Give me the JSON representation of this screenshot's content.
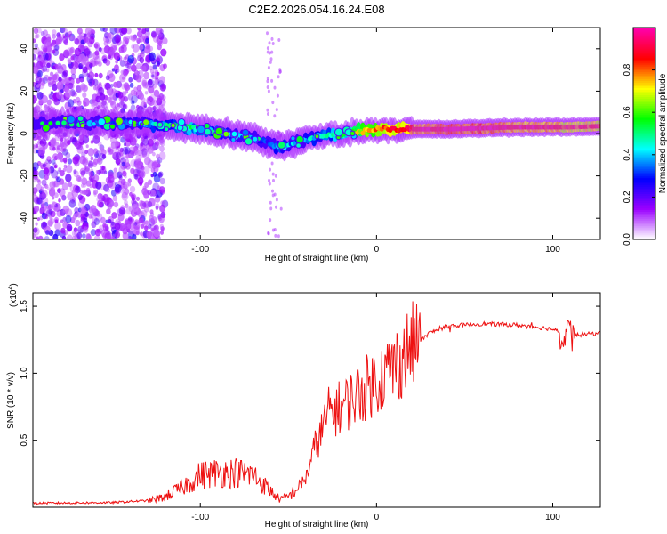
{
  "title": "C2E2.2026.054.16.24.E08",
  "chart_data": [
    {
      "type": "heatmap",
      "title": "C2E2.2026.054.16.24.E08",
      "xlabel": "Height of straight line (km)",
      "ylabel": "Frequency (Hz)",
      "xlim": [
        -195,
        127
      ],
      "ylim": [
        -50,
        50
      ],
      "xticks": [
        -100,
        0,
        100
      ],
      "xtick_labels": [
        "-100",
        "0",
        "100"
      ],
      "yticks": [
        40,
        20,
        0,
        -20,
        -40
      ],
      "ytick_labels": [
        "40",
        "20",
        "0",
        "-20",
        "-40"
      ],
      "colorbar": {
        "label": "Normalized spectral amplitude",
        "range": [
          0,
          1
        ],
        "ticks": [
          0.0,
          0.2,
          0.4,
          0.6,
          0.8
        ],
        "tick_labels": [
          "0.0",
          "0.2",
          "0.4",
          "0.6",
          "0.8"
        ],
        "colors": [
          "#ffffff",
          "#9a00ff",
          "#0000ff",
          "#00ffff",
          "#00ff00",
          "#ffff00",
          "#ff0000",
          "#ff00aa"
        ]
      },
      "ridge": {
        "x": [
          -190,
          -170,
          -150,
          -130,
          -120,
          -110,
          -100,
          -90,
          -80,
          -70,
          -60,
          -55,
          -50,
          -45,
          -40,
          -30,
          -20,
          -10,
          0,
          10,
          20,
          40,
          60,
          80,
          100,
          110,
          127
        ],
        "y": [
          5,
          5,
          5,
          4.5,
          4,
          3,
          2,
          1,
          -1,
          -2,
          -5,
          -6,
          -5,
          -4,
          -3,
          -1,
          0,
          1,
          2,
          2,
          2,
          2,
          2.5,
          3,
          3,
          3,
          3.5
        ],
        "amplitude": [
          0.3,
          0.3,
          0.35,
          0.4,
          0.45,
          0.5,
          0.5,
          0.45,
          0.4,
          0.35,
          0.3,
          0.45,
          0.4,
          0.35,
          0.4,
          0.45,
          0.55,
          0.7,
          0.8,
          0.85,
          0.9,
          0.95,
          0.95,
          0.9,
          0.9,
          0.85,
          0.85
        ]
      },
      "noise_region_x": [
        -195,
        -120
      ]
    },
    {
      "type": "line",
      "xlabel": "Height of straight line (km)",
      "ylabel": "SNR (10 * v/v)",
      "yscale_label": "(x10",
      "yscale_exp": "4",
      "yscale_close": ")",
      "xlim": [
        -195,
        127
      ],
      "ylim": [
        0,
        16000
      ],
      "xticks": [
        -100,
        0,
        100
      ],
      "xtick_labels": [
        "-100",
        "0",
        "100"
      ],
      "yticks": [
        5000,
        10000,
        15000
      ],
      "ytick_labels": [
        "0.5",
        "1.0",
        "1.5"
      ],
      "color": "#ee1111",
      "series": [
        {
          "name": "SNR",
          "x": [
            -195,
            -150,
            -130,
            -125,
            -120,
            -110,
            -100,
            -90,
            -80,
            -70,
            -60,
            -55,
            -50,
            -45,
            -40,
            -35,
            -30,
            -28,
            -20,
            -10,
            0,
            10,
            20,
            30,
            40,
            60,
            80,
            100,
            105,
            110,
            127
          ],
          "y": [
            300,
            350,
            500,
            600,
            800,
            1500,
            2400,
            2600,
            2600,
            2400,
            1200,
            600,
            800,
            1400,
            2200,
            4500,
            6000,
            7000,
            7500,
            8500,
            9500,
            10500,
            12000,
            13000,
            13500,
            13700,
            13600,
            13300,
            13000,
            12800,
            13000
          ]
        }
      ]
    }
  ]
}
